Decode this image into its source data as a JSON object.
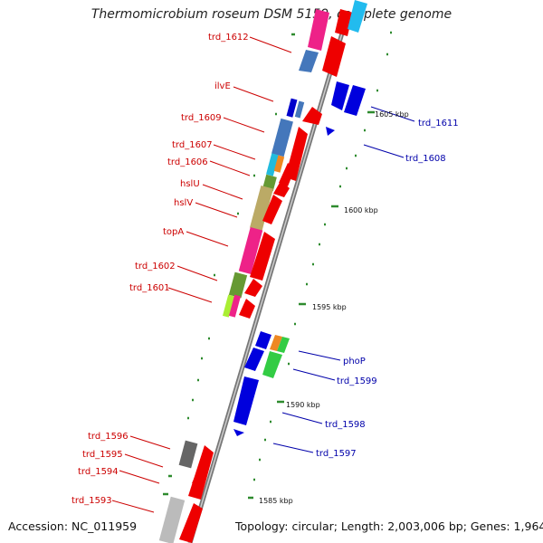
{
  "title": "Thermomicrobium roseum DSM 5159, complete genome",
  "accession": "Accession: NC_011959",
  "topology": "Topology: circular; Length: 2,003,006 bp; Genes: 1,964",
  "colors": {
    "left_label": "#cc0000",
    "right_label": "#0000aa",
    "backbone": "#888888",
    "marker": "#2e8b2e"
  },
  "left_labels": [
    "trd_1612",
    "ilvE",
    "trd_1609",
    "trd_1607",
    "trd_1606",
    "hslU",
    "hslV",
    "topA",
    "trd_1602",
    "trd_1601",
    "trd_1596",
    "trd_1595",
    "trd_1594",
    "trd_1593"
  ],
  "right_labels": [
    "trd_1611",
    "trd_1608",
    "phoP",
    "trd_1599",
    "trd_1598",
    "trd_1597"
  ],
  "scale_ticks": [
    "1605 kbp",
    "1600 kbp",
    "1595 kbp",
    "1590 kbp",
    "1585 kbp"
  ]
}
